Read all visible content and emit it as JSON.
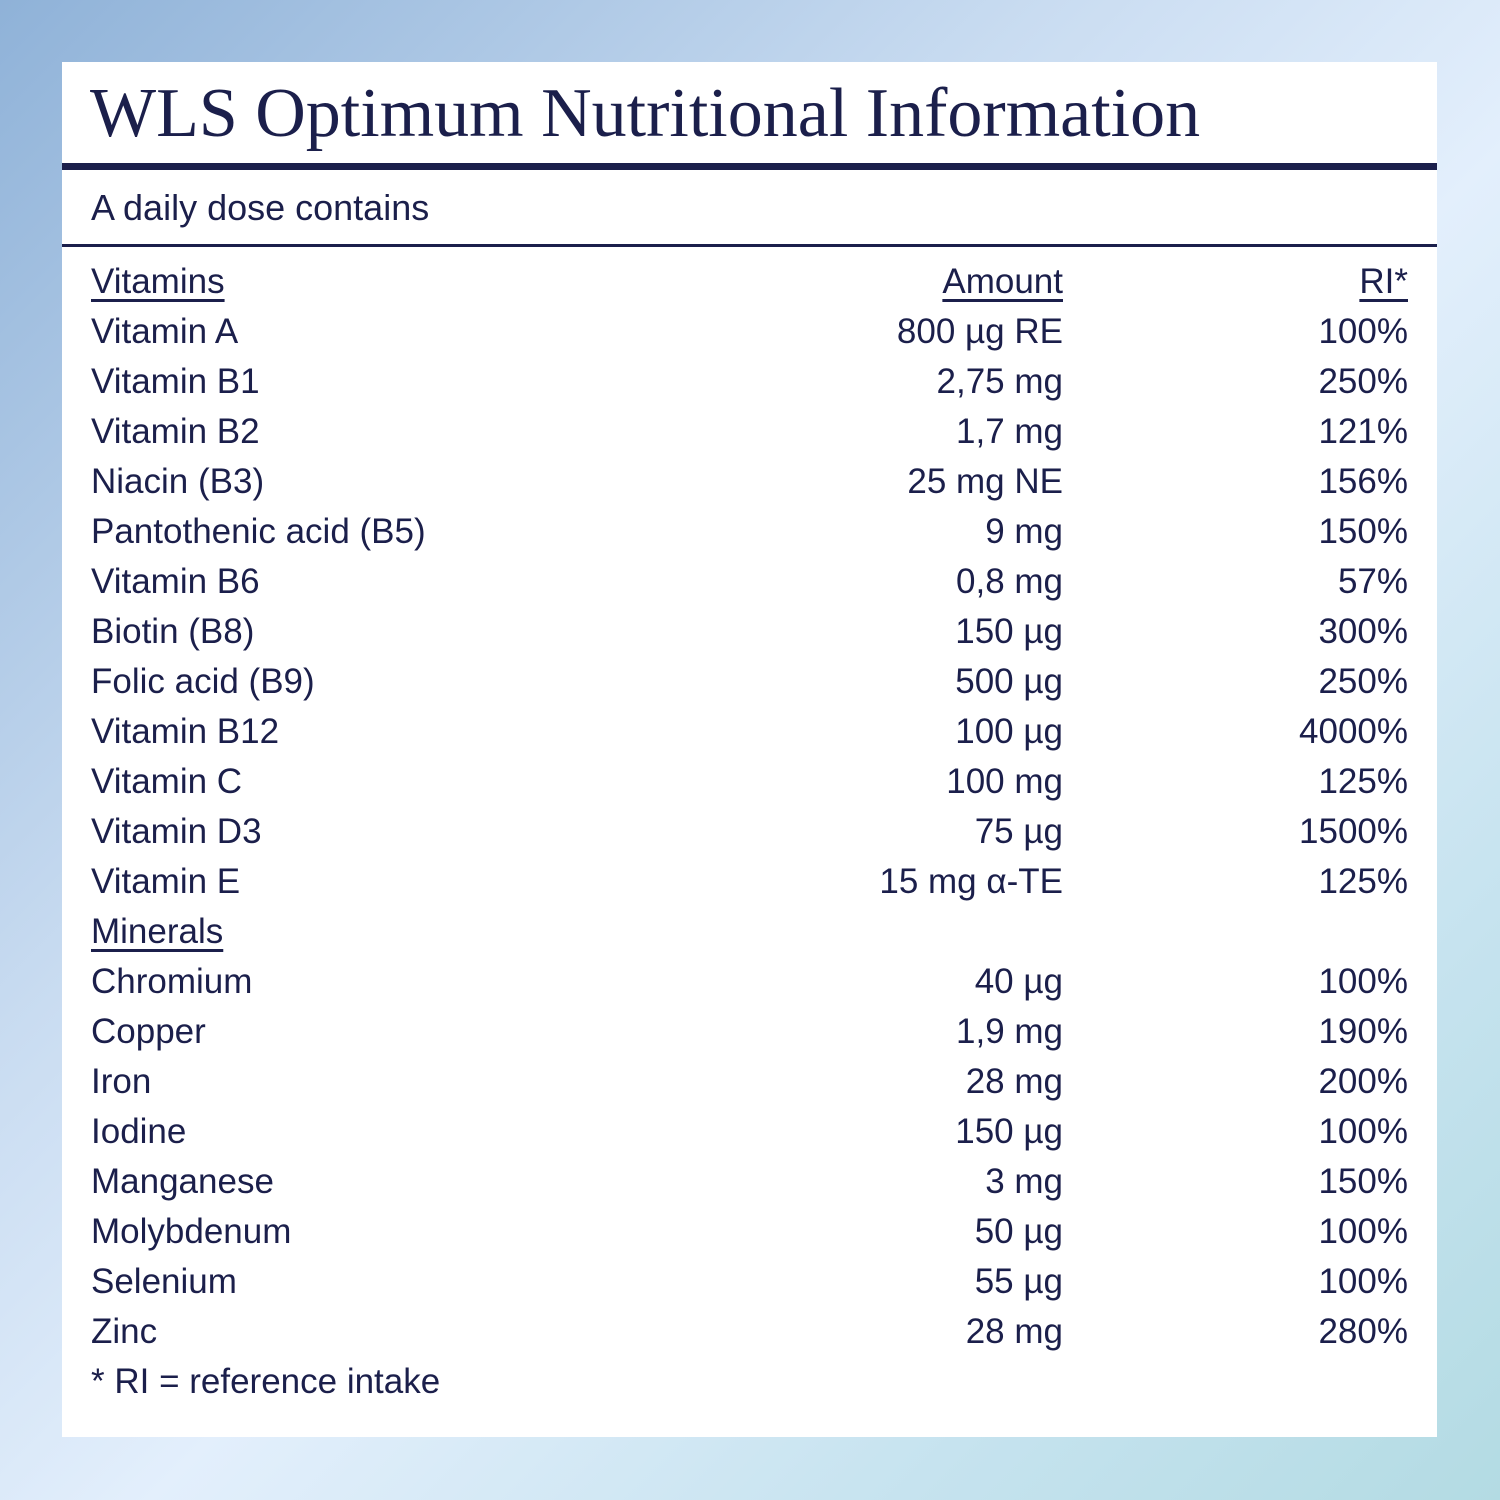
{
  "title": "WLS Optimum Nutritional Information",
  "subtitle": "A daily dose contains",
  "table": {
    "header": [
      "Vitamins",
      "Amount",
      "RI*"
    ],
    "vitamins": [
      [
        "Vitamin A",
        "800 µg RE",
        "100%"
      ],
      [
        "Vitamin B1",
        "2,75 mg",
        "250%"
      ],
      [
        "Vitamin B2",
        "1,7 mg",
        "121%"
      ],
      [
        "Niacin (B3)",
        "25 mg NE",
        "156%"
      ],
      [
        "Pantothenic acid (B5)",
        "9 mg",
        "150%"
      ],
      [
        "Vitamin B6",
        "0,8 mg",
        "57%"
      ],
      [
        "Biotin (B8)",
        "150 µg",
        "300%"
      ],
      [
        "Folic acid (B9)",
        "500 µg",
        "250%"
      ],
      [
        "Vitamin B12",
        "100 µg",
        "4000%"
      ],
      [
        "Vitamin C",
        "100 mg",
        "125%"
      ],
      [
        "Vitamin D3",
        "75 µg",
        "1500%"
      ],
      [
        "Vitamin E",
        "15 mg α-TE",
        "125%"
      ]
    ],
    "minerals_heading": "Minerals",
    "minerals": [
      [
        "Chromium",
        "40 µg",
        "100%"
      ],
      [
        "Copper",
        "1,9 mg",
        "190%"
      ],
      [
        "Iron",
        "28 mg",
        "200%"
      ],
      [
        "Iodine",
        "150 µg",
        "100%"
      ],
      [
        "Manganese",
        "3 mg",
        "150%"
      ],
      [
        "Molybdenum",
        "50 µg",
        "100%"
      ],
      [
        "Selenium",
        "55 µg",
        "100%"
      ],
      [
        "Zinc",
        "28 mg",
        "280%"
      ]
    ]
  },
  "footnote": "* RI = reference intake"
}
